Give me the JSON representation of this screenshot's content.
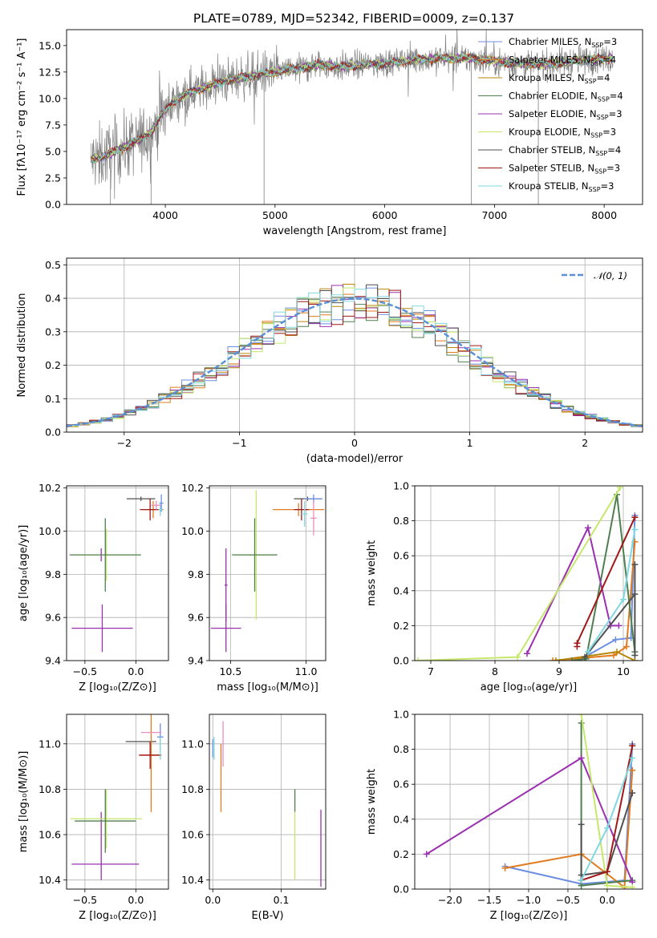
{
  "figure": {
    "title": "PLATE=0789, MJD=52342, FIBERID=0009, z=0.137"
  },
  "chart_data": [
    {
      "id": "spectrum",
      "type": "line",
      "xlabel": "wavelength [Angstrom, rest frame]",
      "ylabel": "Flux [fλ10⁻¹⁷ erg cm⁻² s⁻¹ A⁻¹]",
      "xlim": [
        3100,
        8350
      ],
      "ylim": [
        0,
        16.5
      ],
      "xticks": [
        4000,
        5000,
        6000,
        7000,
        8000
      ],
      "yticks": [
        0.0,
        2.5,
        5.0,
        7.5,
        10.0,
        12.5,
        15.0
      ],
      "grid": false,
      "legend_position": "top-right",
      "observed_flux_color": "#808080",
      "continuum_knots": {
        "x": [
          3320,
          3450,
          3600,
          3750,
          3870,
          3950,
          4050,
          4200,
          4400,
          4600,
          4800,
          5000,
          5200,
          5400,
          5600,
          5800,
          6000,
          6200,
          6500,
          6800,
          7100,
          7400,
          7700,
          8000,
          8080
        ],
        "y": [
          4.2,
          4.6,
          5.3,
          6.0,
          6.8,
          8.2,
          9.5,
          10.5,
          11.2,
          11.8,
          12.2,
          12.5,
          12.8,
          13.2,
          13.0,
          13.2,
          13.3,
          13.6,
          13.8,
          13.8,
          13.4,
          13.2,
          13.5,
          13.8,
          13.8
        ]
      },
      "series": [
        {
          "name": "Chabrier MILES, N_SSP=3",
          "label": "Chabrier MILES, N",
          "sub": "SSP",
          "suffix": "=3",
          "color": "#6c8ee0"
        },
        {
          "name": "Salpeter MILES, N_SSP=4",
          "label": "Salpeter MILES, N",
          "sub": "SSP",
          "suffix": "=4",
          "color": "#e07b1f"
        },
        {
          "name": "Kroupa MILES, N_SSP=4",
          "label": "Kroupa MILES, N",
          "sub": "SSP",
          "suffix": "=4",
          "color": "#b8860b"
        },
        {
          "name": "Chabrier ELODIE, N_SSP=4",
          "label": "Chabrier ELODIE, N",
          "sub": "SSP",
          "suffix": "=4",
          "color": "#4f7f4f"
        },
        {
          "name": "Salpeter ELODIE, N_SSP=3",
          "label": "Salpeter ELODIE, N",
          "sub": "SSP",
          "suffix": "=3",
          "color": "#9b30b0"
        },
        {
          "name": "Kroupa ELODIE, N_SSP=3",
          "label": "Kroupa ELODIE, N",
          "sub": "SSP",
          "suffix": "=3",
          "color": "#c5e86c"
        },
        {
          "name": "Chabrier STELIB, N_SSP=4",
          "label": "Chabrier STELIB, N",
          "sub": "SSP",
          "suffix": "=4",
          "color": "#505050"
        },
        {
          "name": "Salpeter STELIB, N_SSP=3",
          "label": "Salpeter STELIB, N",
          "sub": "SSP",
          "suffix": "=3",
          "color": "#a01818"
        },
        {
          "name": "Kroupa STELIB, N_SSP=3",
          "label": "Kroupa STELIB, N",
          "sub": "SSP",
          "suffix": "=3",
          "color": "#7fd8e0"
        }
      ]
    },
    {
      "id": "residuals",
      "type": "line",
      "xlabel": "(data-model)/error",
      "ylabel": "Normed distribution",
      "xlim": [
        -2.5,
        2.5
      ],
      "ylim": [
        0,
        0.52
      ],
      "xticks": [
        -2,
        -1,
        0,
        1,
        2
      ],
      "yticks": [
        0.0,
        0.1,
        0.2,
        0.3,
        0.4,
        0.5
      ],
      "grid": true,
      "legend_position": "top-right",
      "reference_curve": {
        "name": "N(0,1)",
        "label": "𝒩(0, 1)",
        "mean": 0,
        "sigma": 1,
        "color": "#5b8fd6"
      }
    },
    {
      "id": "age_vs_Z",
      "type": "scatter",
      "xlabel": "Z [log₁₀(Z/Z⊙)]",
      "ylabel": "age  [log₁₀(age/yr)]",
      "xlim": [
        -0.68,
        0.32
      ],
      "ylim": [
        9.4,
        10.21
      ],
      "xticks": [
        -0.5,
        0.0
      ],
      "yticks": [
        9.4,
        9.6,
        9.8,
        10.0,
        10.2
      ],
      "grid": true,
      "points": [
        {
          "color": "#9b30b0",
          "x": -0.33,
          "xerr": 0.3,
          "y": 9.55,
          "yerr": 0.11
        },
        {
          "color": "#9b30b0",
          "x": -0.34,
          "xerr": 0.01,
          "y": 9.89,
          "yerr": 0.03
        },
        {
          "color": "#c5e86c",
          "x": -0.29,
          "xerr": 0.33,
          "y": 9.89,
          "yerr": 0.12
        },
        {
          "color": "#4f7f4f",
          "x": -0.3,
          "xerr": 0.35,
          "y": 9.89,
          "yerr": 0.17
        },
        {
          "color": "#505050",
          "x": 0.05,
          "xerr": 0.14,
          "y": 10.15,
          "yerr": 0.01
        },
        {
          "color": "#e07b1f",
          "x": 0.17,
          "xerr": 0.1,
          "y": 10.1,
          "yerr": 0.04
        },
        {
          "color": "#a01818",
          "x": 0.14,
          "xerr": 0.1,
          "y": 10.1,
          "yerr": 0.05
        },
        {
          "color": "#6c8ee0",
          "x": 0.25,
          "xerr": 0.02,
          "y": 10.13,
          "yerr": 0.04
        },
        {
          "color": "#7fd8e0",
          "x": 0.24,
          "xerr": 0.02,
          "y": 10.1,
          "yerr": 0.03
        },
        {
          "color": "#e88fbf",
          "x": 0.2,
          "xerr": 0.05,
          "y": 10.12,
          "yerr": 0.02
        }
      ]
    },
    {
      "id": "age_vs_mass",
      "type": "scatter",
      "xlabel": "mass [log₁₀(M/M⊙)]",
      "ylabel": "",
      "xlim": [
        10.36,
        11.13
      ],
      "ylim": [
        9.4,
        10.21
      ],
      "xticks": [
        10.5,
        11.0
      ],
      "yticks": [
        9.4,
        9.6,
        9.8,
        10.0,
        10.2
      ],
      "grid": true,
      "points": [
        {
          "color": "#9b30b0",
          "x": 10.47,
          "xerr": 0.1,
          "y": 9.55,
          "yerr": 0.11
        },
        {
          "color": "#9b30b0",
          "x": 10.47,
          "xerr": 0.01,
          "y": 9.75,
          "yerr": 0.17
        },
        {
          "color": "#c5e86c",
          "x": 10.67,
          "xerr": 0.13,
          "y": 9.89,
          "yerr": 0.3
        },
        {
          "color": "#4f7f4f",
          "x": 10.66,
          "xerr": 0.15,
          "y": 9.89,
          "yerr": 0.17
        },
        {
          "color": "#e07b1f",
          "x": 10.95,
          "xerr": 0.17,
          "y": 10.1,
          "yerr": 0.03
        },
        {
          "color": "#505050",
          "x": 11.01,
          "xerr": 0.09,
          "y": 10.15,
          "yerr": 0.01
        },
        {
          "color": "#a01818",
          "x": 10.97,
          "xerr": 0.05,
          "y": 10.1,
          "yerr": 0.05
        },
        {
          "color": "#6c8ee0",
          "x": 11.05,
          "xerr": 0.06,
          "y": 10.15,
          "yerr": 0.02
        },
        {
          "color": "#7fd8e0",
          "x": 10.99,
          "xerr": 0.02,
          "y": 10.08,
          "yerr": 0.06
        },
        {
          "color": "#e88fbf",
          "x": 11.05,
          "xerr": 0.02,
          "y": 10.06,
          "yerr": 0.08
        }
      ]
    },
    {
      "id": "mass_weight_vs_age",
      "type": "line",
      "xlabel": "age  [log₁₀(age/yr)]",
      "ylabel": "mass weight",
      "xlim": [
        6.75,
        10.3
      ],
      "ylim": [
        0,
        1.0
      ],
      "xticks": [
        7,
        8,
        9,
        10
      ],
      "yticks": [
        0.0,
        0.2,
        0.4,
        0.6,
        0.8,
        1.0
      ],
      "grid": true,
      "series": [
        {
          "color": "#6c8ee0",
          "x": [
            9.3,
            9.88,
            10.12,
            10.18
          ],
          "y": [
            0.0,
            0.12,
            0.13,
            0.83
          ]
        },
        {
          "color": "#e07b1f",
          "x": [
            8.9,
            9.85,
            10.05,
            10.18
          ],
          "y": [
            0.0,
            0.03,
            0.08,
            0.68
          ]
        },
        {
          "color": "#b8860b",
          "x": [
            8.95,
            9.9,
            10.18
          ],
          "y": [
            0.0,
            0.05,
            0.0
          ]
        },
        {
          "color": "#4f7f4f",
          "x": [
            9.2,
            9.42,
            9.9,
            10.18
          ],
          "y": [
            0.0,
            0.01,
            0.95,
            0.05
          ]
        },
        {
          "color": "#9b30b0",
          "x": [
            8.5,
            9.45,
            9.8,
            9.93
          ],
          "y": [
            0.04,
            0.76,
            0.2,
            0.2
          ]
        },
        {
          "color": "#c5e86c",
          "x": [
            6.8,
            8.35,
            9.95
          ],
          "y": [
            0.0,
            0.02,
            0.99
          ]
        },
        {
          "color": "#505050",
          "x": [
            9.4,
            10.18,
            10.18,
            10.18
          ],
          "y": [
            0.02,
            0.38,
            0.55,
            0.03
          ]
        },
        {
          "color": "#a01818",
          "x": [
            9.28,
            9.28,
            10.18
          ],
          "y": [
            0.08,
            0.1,
            0.82
          ]
        },
        {
          "color": "#7fd8e0",
          "x": [
            9.45,
            10.0,
            10.18
          ],
          "y": [
            0.05,
            0.35,
            0.75
          ]
        }
      ]
    },
    {
      "id": "mass_vs_Z",
      "type": "scatter",
      "xlabel": "Z [log₁₀(Z/Z⊙)]",
      "ylabel": "mass [log₁₀(M/M⊙)]",
      "xlim": [
        -0.68,
        0.32
      ],
      "ylim": [
        10.36,
        11.13
      ],
      "xticks": [
        -0.5,
        0.0
      ],
      "yticks": [
        10.4,
        10.6,
        10.8,
        11.0
      ],
      "grid": true,
      "points": [
        {
          "color": "#9b30b0",
          "x": -0.3,
          "xerr": 0.33,
          "y": 10.47,
          "yerr": 0.0
        },
        {
          "color": "#9b30b0",
          "x": -0.34,
          "xerr": 0.0,
          "y": 10.55,
          "yerr": 0.15
        },
        {
          "color": "#c5e86c",
          "x": -0.29,
          "xerr": 0.35,
          "y": 10.67,
          "yerr": 0.13
        },
        {
          "color": "#4f7f4f",
          "x": -0.3,
          "xerr": 0.3,
          "y": 10.66,
          "yerr": 0.14
        },
        {
          "color": "#505050",
          "x": 0.05,
          "xerr": 0.15,
          "y": 11.01,
          "yerr": 0.0
        },
        {
          "color": "#e07b1f",
          "x": 0.15,
          "xerr": 0.1,
          "y": 10.95,
          "yerr": 0.25
        },
        {
          "color": "#a01818",
          "x": 0.14,
          "xerr": 0.11,
          "y": 10.95,
          "yerr": 0.06
        },
        {
          "color": "#6c8ee0",
          "x": 0.24,
          "xerr": 0.03,
          "y": 11.03,
          "yerr": 0.06
        },
        {
          "color": "#e88fbf",
          "x": 0.15,
          "xerr": 0.1,
          "y": 11.05,
          "yerr": 0.0
        },
        {
          "color": "#7fd8e0",
          "x": 0.24,
          "xerr": 0.0,
          "y": 10.98,
          "yerr": 0.05
        }
      ]
    },
    {
      "id": "mass_vs_ebv",
      "type": "scatter",
      "xlabel": "E(B-V)",
      "ylabel": "",
      "xlim": [
        -0.005,
        0.165
      ],
      "ylim": [
        10.36,
        11.13
      ],
      "xticks": [
        0.0,
        0.1
      ],
      "yticks": [
        10.4,
        10.6,
        10.8,
        11.0
      ],
      "grid": true,
      "points": [
        {
          "color": "#6c8ee0",
          "x": 0.0,
          "xerr": 0.0,
          "y": 10.98,
          "yerr": 0.04
        },
        {
          "color": "#7fd8e0",
          "x": 0.002,
          "xerr": 0.0,
          "y": 10.98,
          "yerr": 0.05
        },
        {
          "color": "#e07b1f",
          "x": 0.012,
          "xerr": 0.0,
          "y": 10.85,
          "yerr": 0.15
        },
        {
          "color": "#e88fbf",
          "x": 0.015,
          "xerr": 0.0,
          "y": 11.0,
          "yerr": 0.1
        },
        {
          "color": "#4f7f4f",
          "x": 0.12,
          "xerr": 0.0,
          "y": 10.75,
          "yerr": 0.05
        },
        {
          "color": "#c5e86c",
          "x": 0.12,
          "xerr": 0.0,
          "y": 10.55,
          "yerr": 0.15
        },
        {
          "color": "#9b30b0",
          "x": 0.158,
          "xerr": 0.0,
          "y": 10.54,
          "yerr": 0.17
        }
      ]
    },
    {
      "id": "mass_weight_vs_Z",
      "type": "line",
      "xlabel": "Z [log₁₀(Z/Z⊙)]",
      "ylabel": "mass weight",
      "xlim": [
        -2.45,
        0.45
      ],
      "ylim": [
        0,
        1.0
      ],
      "xticks": [
        -2.0,
        -1.5,
        -1.0,
        -0.5,
        0.0
      ],
      "yticks": [
        0.0,
        0.2,
        0.4,
        0.6,
        0.8,
        1.0
      ],
      "grid": true,
      "series": [
        {
          "color": "#6c8ee0",
          "x": [
            -1.3,
            -0.33,
            0.22,
            0.32
          ],
          "y": [
            0.13,
            0.03,
            0.05,
            0.83
          ]
        },
        {
          "color": "#e07b1f",
          "x": [
            -1.3,
            -0.33,
            0.22,
            0.32
          ],
          "y": [
            0.12,
            0.2,
            0.01,
            0.68
          ]
        },
        {
          "color": "#4f7f4f",
          "x": [
            -0.33,
            -0.33,
            0.32
          ],
          "y": [
            0.95,
            0.02,
            0.05
          ]
        },
        {
          "color": "#9b30b0",
          "x": [
            -2.3,
            -0.33,
            0.32
          ],
          "y": [
            0.2,
            0.75,
            0.04
          ]
        },
        {
          "color": "#c5e86c",
          "x": [
            -0.33,
            0.0,
            0.32
          ],
          "y": [
            1.0,
            0.02,
            0.01
          ]
        },
        {
          "color": "#505050",
          "x": [
            -0.33,
            -0.33,
            0.0,
            0.32
          ],
          "y": [
            0.37,
            0.08,
            0.1,
            0.55
          ]
        },
        {
          "color": "#a01818",
          "x": [
            -0.33,
            0.0,
            0.32
          ],
          "y": [
            0.05,
            0.1,
            0.82
          ]
        },
        {
          "color": "#7fd8e0",
          "x": [
            -0.33,
            0.0,
            0.32
          ],
          "y": [
            0.05,
            0.35,
            0.75
          ]
        }
      ]
    }
  ]
}
